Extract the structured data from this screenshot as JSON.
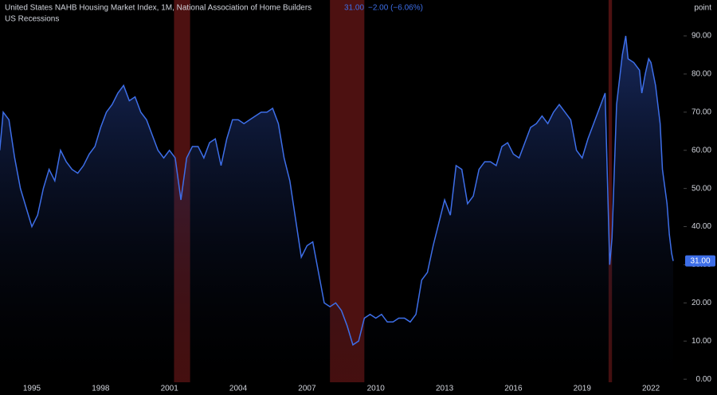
{
  "header": {
    "title": "United States NAHB Housing Market Index, 1M, National Association of Home Builders",
    "last": "31.00",
    "change": "−2.00 (−6.06%)",
    "study": "US Recessions",
    "unit": "point"
  },
  "chart_data": {
    "type": "area",
    "x": [
      1993.6,
      1993.75,
      1994.0,
      1994.25,
      1994.5,
      1994.75,
      1995.0,
      1995.25,
      1995.5,
      1995.75,
      1996.0,
      1996.25,
      1996.5,
      1996.75,
      1997.0,
      1997.25,
      1997.5,
      1997.75,
      1998.0,
      1998.25,
      1998.5,
      1998.75,
      1999.0,
      1999.25,
      1999.5,
      1999.75,
      2000.0,
      2000.25,
      2000.5,
      2000.75,
      2001.0,
      2001.25,
      2001.5,
      2001.75,
      2002.0,
      2002.25,
      2002.5,
      2002.75,
      2003.0,
      2003.25,
      2003.5,
      2003.75,
      2004.0,
      2004.25,
      2004.5,
      2004.75,
      2005.0,
      2005.25,
      2005.5,
      2005.75,
      2006.0,
      2006.25,
      2006.5,
      2006.75,
      2007.0,
      2007.25,
      2007.5,
      2007.75,
      2008.0,
      2008.25,
      2008.5,
      2008.75,
      2009.0,
      2009.25,
      2009.5,
      2009.75,
      2010.0,
      2010.25,
      2010.5,
      2010.75,
      2011.0,
      2011.25,
      2011.5,
      2011.75,
      2012.0,
      2012.25,
      2012.5,
      2012.75,
      2013.0,
      2013.25,
      2013.5,
      2013.75,
      2014.0,
      2014.25,
      2014.5,
      2014.75,
      2015.0,
      2015.25,
      2015.5,
      2015.75,
      2016.0,
      2016.25,
      2016.5,
      2016.75,
      2017.0,
      2017.25,
      2017.5,
      2017.75,
      2018.0,
      2018.25,
      2018.5,
      2018.75,
      2019.0,
      2019.25,
      2019.5,
      2019.75,
      2020.0,
      2020.2,
      2020.3,
      2020.5,
      2020.75,
      2020.9,
      2021.0,
      2021.25,
      2021.5,
      2021.6,
      2021.75,
      2021.9,
      2022.0,
      2022.2,
      2022.4,
      2022.5,
      2022.7,
      2022.8,
      2022.9,
      2022.97
    ],
    "values": [
      60,
      70,
      68,
      58,
      50,
      45,
      40,
      43,
      50,
      55,
      52,
      60,
      57,
      55,
      54,
      56,
      59,
      61,
      66,
      70,
      72,
      75,
      77,
      73,
      74,
      70,
      68,
      64,
      60,
      58,
      60,
      58,
      47,
      58,
      61,
      61,
      58,
      62,
      63,
      56,
      63,
      68,
      68,
      67,
      68,
      69,
      70,
      70,
      71,
      67,
      58,
      52,
      42,
      32,
      35,
      36,
      28,
      20,
      19,
      20,
      18,
      14,
      9,
      10,
      16,
      17,
      16,
      17,
      15,
      15,
      16,
      16,
      15,
      17,
      26,
      28,
      35,
      41,
      47,
      43,
      56,
      55,
      46,
      48,
      55,
      57,
      57,
      56,
      61,
      62,
      59,
      58,
      62,
      66,
      67,
      69,
      67,
      70,
      72,
      70,
      68,
      60,
      58,
      63,
      67,
      71,
      75,
      30,
      37,
      72,
      85,
      90,
      84,
      83,
      81,
      75,
      80,
      84,
      83,
      77,
      67,
      55,
      46,
      38,
      33,
      31
    ],
    "color": "#3d6ee8",
    "recessions": [
      [
        2001.2,
        2001.9
      ],
      [
        2008.0,
        2009.5
      ],
      [
        2020.15,
        2020.3
      ]
    ],
    "recession_color": "#5a1414",
    "xlim": [
      1993.61,
      2023.42
    ],
    "xticks": [
      1995,
      1998,
      2001,
      2004,
      2007,
      2010,
      2013,
      2016,
      2019,
      2022
    ],
    "ylim": [
      -0.8,
      99.4
    ],
    "yticks": [
      {
        "value": 0,
        "label": "0.00"
      },
      {
        "value": 10,
        "label": "10.00"
      },
      {
        "value": 20,
        "label": "20.00"
      },
      {
        "value": 30,
        "label": "30.00"
      },
      {
        "value": 40,
        "label": "40.00"
      },
      {
        "value": 50,
        "label": "50.00"
      },
      {
        "value": 60,
        "label": "60.00"
      },
      {
        "value": 70,
        "label": "70.00"
      },
      {
        "value": 80,
        "label": "80.00"
      },
      {
        "value": 90,
        "label": "90.00"
      }
    ],
    "grid": false
  }
}
